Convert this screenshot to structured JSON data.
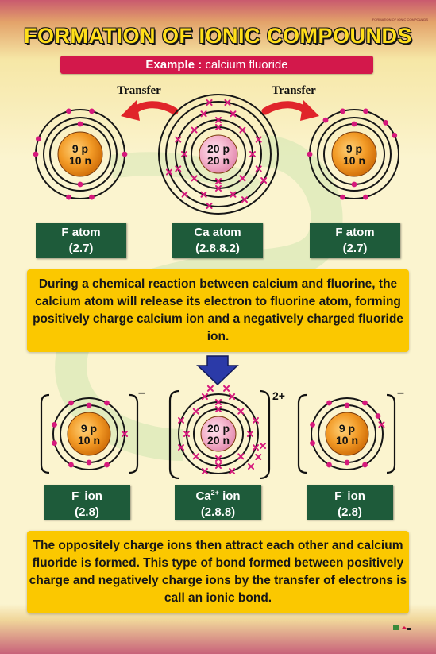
{
  "poster": {
    "top_note": "FORMATION OF IONIC COMPOUNDS",
    "title": "FORMATION OF IONIC COMPOUNDS",
    "example_label": "Example :",
    "example_value": "calcium fluoride"
  },
  "transfer_labels": [
    "Transfer",
    "Transfer"
  ],
  "atoms": [
    {
      "protons": "9 p",
      "neutrons": "10 n",
      "name": "F atom",
      "config": "(2.7)"
    },
    {
      "protons": "20 p",
      "neutrons": "20 n",
      "name": "Ca atom",
      "config": "(2.8.8.2)"
    },
    {
      "protons": "9 p",
      "neutrons": "10 n",
      "name": "F atom",
      "config": "(2.7)"
    }
  ],
  "paragraph1": "During a chemical reaction between calcium and fluorine, the calcium atom will release its electron to fluorine atom, forming positively charge calcium ion and a negatively charged fluoride ion.",
  "ions": [
    {
      "protons": "9 p",
      "neutrons": "10 n",
      "name_base": "F",
      "name_sup": "-",
      "name_rest": "ion",
      "config": "(2.8)",
      "charge": "–"
    },
    {
      "protons": "20 p",
      "neutrons": "20 n",
      "name_base": "Ca",
      "name_sup": "2+",
      "name_rest": "ion",
      "config": "(2.8.8)",
      "charge": "2+"
    },
    {
      "protons": "9 p",
      "neutrons": "10 n",
      "name_base": "F",
      "name_sup": "-",
      "name_rest": "ion",
      "config": "(2.8)",
      "charge": "–"
    }
  ],
  "paragraph2": "The oppositely charge ions then attract each other and calcium fluoride is formed. This type of bond formed between positively charge and negatively charge ions by the transfer of electrons is call an ionic bond.",
  "colors": {
    "title_yellow": "#ffde1a",
    "example_red": "#d3184b",
    "label_green": "#1e5b3a",
    "info_yellow": "#fbc800",
    "electron_magenta": "#d6197c",
    "arrow_red": "#e0242a",
    "arrow_blue": "#2b3aa8",
    "nucleus_orange": "#e88a1a",
    "ca_nucleus_pink": "#f3a9c6"
  }
}
